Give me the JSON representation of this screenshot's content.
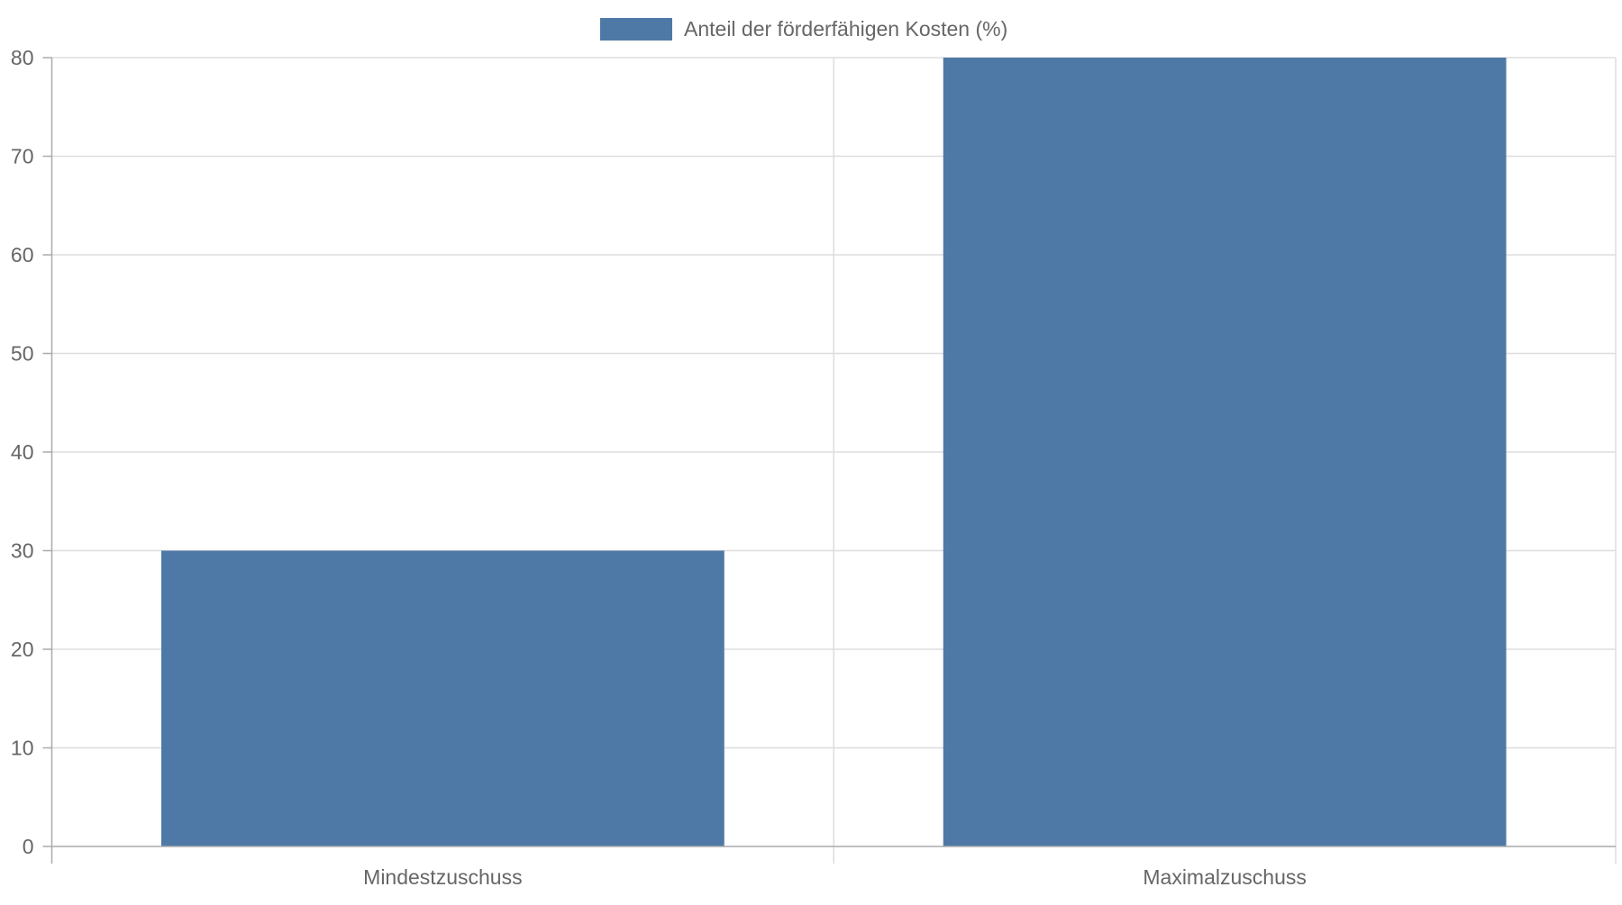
{
  "chart_data": {
    "type": "bar",
    "categories": [
      "Mindestzuschuss",
      "Maximalzuschuss"
    ],
    "series": [
      {
        "name": "Anteil der förderfähigen Kosten (%)",
        "values": [
          30,
          80
        ],
        "color": "#4e79a7"
      }
    ],
    "ylim": [
      0,
      80
    ],
    "yticks": [
      0,
      10,
      20,
      30,
      40,
      50,
      60,
      70,
      80
    ],
    "grid": true,
    "legend_position": "top-center"
  }
}
